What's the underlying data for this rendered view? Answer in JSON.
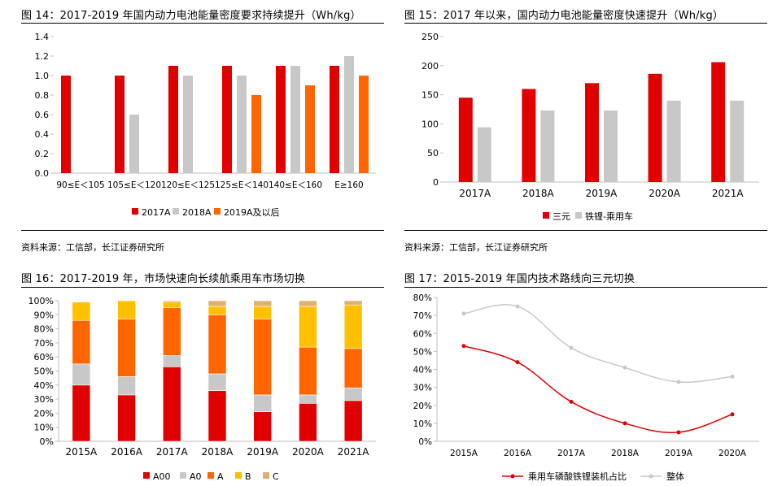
{
  "colors": {
    "red": "#e00000",
    "gray": "#c8c8c8",
    "orange": "#ff6600",
    "yellow": "#ffc000",
    "tan": "#e0b070",
    "linegray": "#c8c8c8",
    "axis": "#bfbfbf"
  },
  "panels": {
    "p14": {
      "title": "图 14：2017-2019 年国内动力电池能量密度要求持续提升（Wh/kg）",
      "source": "资料来源：工信部，长江证券研究所"
    },
    "p15": {
      "title": "图 15：2017 年以来，国内动力电池能量密度快速提升（Wh/kg）",
      "source": "资料来源：工信部，长江证券研究所"
    },
    "p16": {
      "title": "图 16：2017-2019 年，市场快速向长续航乘用车市场切换"
    },
    "p17": {
      "title": "图 17：2015-2019 年国内技术路线向三元切换"
    }
  },
  "chart_data": [
    {
      "id": "c14",
      "type": "bar",
      "categories": [
        "90≤E＜105",
        "105≤E＜120",
        "120≤E＜125",
        "125≤E＜140",
        "140≤E＜160",
        "E≥160"
      ],
      "series": [
        {
          "name": "2017A",
          "color": "#e00000",
          "values": [
            1.0,
            1.0,
            1.1,
            1.1,
            1.1,
            1.1
          ]
        },
        {
          "name": "2018A",
          "color": "#c8c8c8",
          "values": [
            null,
            0.6,
            1.0,
            1.0,
            1.1,
            1.2
          ]
        },
        {
          "name": "2019A及以后",
          "color": "#ff6600",
          "values": [
            null,
            null,
            null,
            0.8,
            0.9,
            1.0
          ]
        }
      ],
      "ylim": [
        0,
        1.4
      ],
      "yticks": [
        "0.0",
        "0.2",
        "0.4",
        "0.6",
        "0.8",
        "1.0",
        "1.2",
        "1.4"
      ],
      "grid": false,
      "legend": "bottom"
    },
    {
      "id": "c15",
      "type": "bar",
      "categories": [
        "2017A",
        "2018A",
        "2019A",
        "2020A",
        "2021A"
      ],
      "series": [
        {
          "name": "三元",
          "color": "#e00000",
          "values": [
            145,
            160,
            170,
            186,
            206
          ]
        },
        {
          "name": "铁锂-乘用车",
          "color": "#c8c8c8",
          "values": [
            94,
            123,
            123,
            140,
            140
          ]
        }
      ],
      "ylim": [
        0,
        250
      ],
      "yticks": [
        "0",
        "50",
        "100",
        "150",
        "200",
        "250"
      ],
      "grid": false,
      "legend": "bottom"
    },
    {
      "id": "c16",
      "type": "bar",
      "stacked": true,
      "categories": [
        "2015A",
        "2016A",
        "2017A",
        "2018A",
        "2019A",
        "2020A",
        "2021A"
      ],
      "series": [
        {
          "name": "A00",
          "color": "#e00000",
          "values": [
            40,
            33,
            53,
            36,
            21,
            27,
            29
          ]
        },
        {
          "name": "A0",
          "color": "#c8c8c8",
          "values": [
            15,
            13,
            8,
            12,
            12,
            6,
            9
          ]
        },
        {
          "name": "A",
          "color": "#ff6600",
          "values": [
            31,
            41,
            34,
            42,
            54,
            34,
            28
          ]
        },
        {
          "name": "B",
          "color": "#ffc000",
          "values": [
            13,
            13,
            4,
            6,
            9,
            29,
            31
          ]
        },
        {
          "name": "C",
          "color": "#e0b070",
          "values": [
            0,
            0,
            1,
            4,
            4,
            4,
            3
          ]
        }
      ],
      "ylim": [
        0,
        100
      ],
      "yticks": [
        "0%",
        "10%",
        "20%",
        "30%",
        "40%",
        "50%",
        "60%",
        "70%",
        "80%",
        "90%",
        "100%"
      ],
      "grid": false,
      "legend": "bottom"
    },
    {
      "id": "c17",
      "type": "line",
      "categories": [
        "2015A",
        "2016A",
        "2017A",
        "2018A",
        "2019A",
        "2020A"
      ],
      "series": [
        {
          "name": "乘用车磷酸铁锂装机占比",
          "color": "#e00000",
          "values": [
            53,
            44,
            22,
            10,
            5,
            15
          ]
        },
        {
          "name": "整体",
          "color": "#c8c8c8",
          "values": [
            71,
            75,
            52,
            41,
            33,
            36
          ]
        }
      ],
      "ylim": [
        0,
        80
      ],
      "yticks": [
        "0%",
        "10%",
        "20%",
        "30%",
        "40%",
        "50%",
        "60%",
        "70%",
        "80%"
      ],
      "grid": false,
      "legend": "bottom"
    }
  ]
}
